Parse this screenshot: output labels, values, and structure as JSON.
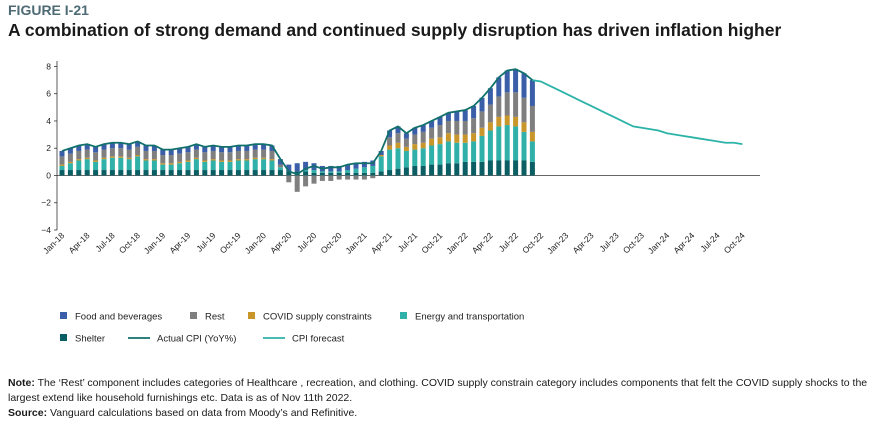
{
  "figure_label": "FIGURE I-21",
  "chart_data": {
    "type": "stacked_bar_line",
    "title": "A combination of strong demand and continued supply disruption has driven inflation higher",
    "categories": [
      "Jan-18",
      null,
      null,
      "Apr-18",
      null,
      null,
      "Jul-18",
      null,
      null,
      "Oct-18",
      null,
      null,
      "Jan-19",
      null,
      null,
      "Apr-19",
      null,
      null,
      "Jul-19",
      null,
      null,
      "Oct-19",
      null,
      null,
      "Jan-20",
      null,
      null,
      "Apr-20",
      null,
      null,
      "Jul-20",
      null,
      null,
      "Oct-20",
      null,
      null,
      "Jan-21",
      null,
      null,
      "Apr-21",
      null,
      null,
      "Jul-21",
      null,
      null,
      "Oct-21",
      null,
      null,
      "Jan-22",
      null,
      null,
      "Apr-22",
      null,
      null,
      "Jul-22",
      null,
      null,
      "Oct-22",
      null,
      null,
      "Jan-23",
      null,
      null,
      "Apr-23",
      null,
      null,
      "Jul-23",
      null,
      null,
      "Oct-23",
      null,
      null,
      "Jan-24",
      null,
      null,
      "Apr-24",
      null,
      null,
      "Jul-24",
      null,
      null,
      "Oct-24"
    ],
    "ylim": [
      -4,
      8.4
    ],
    "yticks": [
      {
        "value": -4,
        "label": "−4"
      },
      {
        "value": -2,
        "label": "−2"
      },
      0,
      2,
      4,
      6,
      8
    ],
    "series": [
      {
        "name": "Food and beverages",
        "kind": "bar",
        "color": "#3a5fa8",
        "values": [
          0.4,
          0.4,
          0.4,
          0.4,
          0.4,
          0.4,
          0.4,
          0.4,
          0.4,
          0.4,
          0.4,
          0.4,
          0.4,
          0.4,
          0.4,
          0.4,
          0.4,
          0.4,
          0.4,
          0.4,
          0.4,
          0.4,
          0.4,
          0.4,
          0.4,
          0.4,
          0.4,
          0.5,
          0.6,
          0.6,
          0.5,
          0.4,
          0.4,
          0.4,
          0.4,
          0.4,
          0.4,
          0.4,
          0.3,
          0.5,
          0.5,
          0.4,
          0.5,
          0.5,
          0.5,
          0.6,
          0.6,
          0.7,
          0.8,
          0.9,
          1.0,
          1.2,
          1.4,
          1.6,
          1.7,
          1.8,
          1.9,
          null,
          null,
          null,
          null,
          null,
          null,
          null,
          null,
          null,
          null,
          null,
          null,
          null,
          null,
          null,
          null,
          null,
          null,
          null,
          null,
          null,
          null,
          null,
          null,
          null
        ]
      },
      {
        "name": "Rest",
        "kind": "bar",
        "color": "#7f7f7f",
        "values": [
          0.6,
          0.6,
          0.6,
          0.6,
          0.6,
          0.6,
          0.6,
          0.6,
          0.6,
          0.6,
          0.6,
          0.6,
          0.6,
          0.6,
          0.6,
          0.6,
          0.6,
          0.6,
          0.6,
          0.6,
          0.6,
          0.6,
          0.6,
          0.6,
          0.6,
          0.6,
          0.2,
          -0.5,
          -1.2,
          -0.8,
          -0.6,
          -0.4,
          -0.4,
          -0.3,
          -0.3,
          -0.3,
          -0.3,
          -0.2,
          0,
          0.6,
          0.7,
          0.6,
          0.7,
          0.8,
          0.8,
          0.9,
          0.9,
          1.0,
          1.0,
          1.1,
          1.2,
          1.3,
          1.5,
          1.7,
          1.8,
          1.8,
          1.9,
          null,
          null,
          null,
          null,
          null,
          null,
          null,
          null,
          null,
          null,
          null,
          null,
          null,
          null,
          null,
          null,
          null,
          null,
          null,
          null,
          null,
          null,
          null,
          null,
          null
        ]
      },
      {
        "name": "COVID supply constraints",
        "kind": "bar",
        "color": "#c9962b",
        "values": [
          0.1,
          0.1,
          0.1,
          0.1,
          0.1,
          0.1,
          0.1,
          0.1,
          0.1,
          0.1,
          0.1,
          0.1,
          0.1,
          0.1,
          0.1,
          0.1,
          0.1,
          0.1,
          0.1,
          0.1,
          0.1,
          0.1,
          0.1,
          0.1,
          0.1,
          0.1,
          0,
          0,
          0,
          0,
          0,
          0,
          0,
          0,
          0,
          0,
          0,
          0,
          0.1,
          0.3,
          0.4,
          0.3,
          0.4,
          0.4,
          0.5,
          0.5,
          0.6,
          0.6,
          0.6,
          0.6,
          0.6,
          0.6,
          0.7,
          0.7,
          0.7,
          0.7,
          0.7,
          null,
          null,
          null,
          null,
          null,
          null,
          null,
          null,
          null,
          null,
          null,
          null,
          null,
          null,
          null,
          null,
          null,
          null,
          null,
          null,
          null,
          null,
          null,
          null,
          null
        ]
      },
      {
        "name": "Energy and transportation",
        "kind": "bar",
        "color": "#2fb0a8",
        "values": [
          0.3,
          0.5,
          0.7,
          0.8,
          0.6,
          0.8,
          0.9,
          0.9,
          0.8,
          1.0,
          0.7,
          0.7,
          0.4,
          0.4,
          0.5,
          0.6,
          0.8,
          0.6,
          0.7,
          0.6,
          0.6,
          0.7,
          0.7,
          0.8,
          0.8,
          0.7,
          0.2,
          0,
          0,
          0.1,
          0.2,
          0.1,
          0.1,
          0.1,
          0.2,
          0.3,
          0.4,
          0.5,
          1.1,
          1.5,
          1.5,
          1.2,
          1.2,
          1.3,
          1.4,
          1.5,
          1.6,
          1.5,
          1.4,
          1.5,
          1.9,
          2.2,
          2.5,
          2.6,
          2.5,
          2.1,
          1.5,
          null,
          null,
          null,
          null,
          null,
          null,
          null,
          null,
          null,
          null,
          null,
          null,
          null,
          null,
          null,
          null,
          null,
          null,
          null,
          null,
          null,
          null,
          null,
          null,
          null
        ]
      },
      {
        "name": "Shelter",
        "kind": "bar",
        "color": "#0b5e63",
        "values": [
          0.4,
          0.4,
          0.4,
          0.4,
          0.4,
          0.4,
          0.4,
          0.4,
          0.4,
          0.4,
          0.4,
          0.4,
          0.4,
          0.4,
          0.4,
          0.4,
          0.4,
          0.4,
          0.4,
          0.4,
          0.4,
          0.4,
          0.4,
          0.4,
          0.4,
          0.4,
          0.4,
          0.3,
          0.3,
          0.3,
          0.2,
          0.2,
          0.2,
          0.2,
          0.2,
          0.2,
          0.2,
          0.2,
          0.3,
          0.4,
          0.5,
          0.6,
          0.7,
          0.7,
          0.8,
          0.8,
          0.9,
          0.9,
          1.0,
          1.0,
          1.0,
          1.1,
          1.1,
          1.1,
          1.1,
          1.1,
          1.0,
          null,
          null,
          null,
          null,
          null,
          null,
          null,
          null,
          null,
          null,
          null,
          null,
          null,
          null,
          null,
          null,
          null,
          null,
          null,
          null,
          null,
          null,
          null,
          null,
          null
        ]
      },
      {
        "name": "Actual CPI (YoY%)",
        "kind": "line",
        "color": "#11706c",
        "values": [
          1.8,
          2.0,
          2.2,
          2.3,
          2.1,
          2.3,
          2.4,
          2.4,
          2.3,
          2.5,
          2.2,
          2.2,
          1.9,
          1.9,
          2.0,
          2.1,
          2.3,
          2.1,
          2.2,
          2.1,
          2.1,
          2.2,
          2.2,
          2.3,
          2.3,
          2.2,
          1.2,
          0.3,
          0.1,
          0.5,
          0.7,
          0.5,
          0.6,
          0.6,
          0.8,
          0.9,
          0.9,
          0.9,
          1.8,
          3.3,
          3.6,
          3.1,
          3.5,
          3.7,
          4.0,
          4.3,
          4.6,
          4.7,
          4.8,
          5.1,
          5.7,
          6.4,
          7.2,
          7.7,
          7.8,
          7.5,
          7.0,
          null,
          null,
          null,
          null,
          null,
          null,
          null,
          null,
          null,
          null,
          null,
          null,
          null,
          null,
          null,
          null,
          null,
          null,
          null,
          null,
          null,
          null,
          null,
          null,
          null
        ]
      },
      {
        "name": "CPI forecast",
        "kind": "line",
        "color": "#2bb3a7",
        "values": [
          null,
          null,
          null,
          null,
          null,
          null,
          null,
          null,
          null,
          null,
          null,
          null,
          null,
          null,
          null,
          null,
          null,
          null,
          null,
          null,
          null,
          null,
          null,
          null,
          null,
          null,
          null,
          null,
          null,
          null,
          null,
          null,
          null,
          null,
          null,
          null,
          null,
          null,
          null,
          null,
          null,
          null,
          null,
          null,
          null,
          null,
          null,
          null,
          null,
          null,
          null,
          null,
          null,
          null,
          null,
          null,
          7.0,
          6.9,
          6.6,
          6.3,
          6.0,
          5.7,
          5.4,
          5.1,
          4.8,
          4.5,
          4.2,
          3.9,
          3.6,
          3.5,
          3.4,
          3.3,
          3.1,
          3.0,
          2.9,
          2.8,
          2.7,
          2.6,
          2.5,
          2.4,
          2.4,
          2.3
        ]
      }
    ]
  },
  "note": {
    "label": "Note:",
    "text": "The ‘Rest’ component includes categories of Healthcare , recreation, and clothing. COVID supply constrain category includes components that felt the COVID supply shocks to the largest extend like household furnishings etc. Data is as of Nov 11th 2022."
  },
  "source": {
    "label": "Source:",
    "text": "Vanguard calculations based on data from Moody’s and Refinitive."
  }
}
